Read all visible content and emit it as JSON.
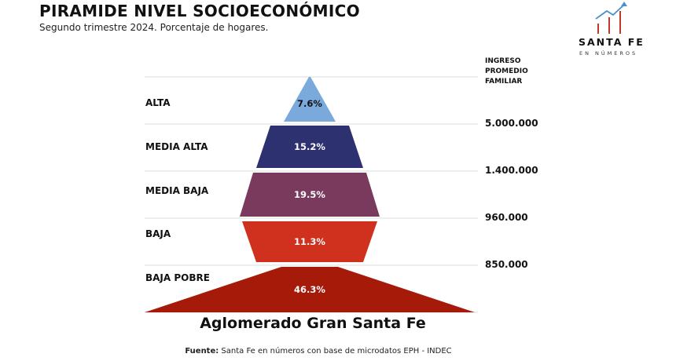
{
  "header": {
    "title": "PIRAMIDE NIVEL SOCIOECONÓMICO",
    "subtitle": "Segundo trimestre 2024. Porcentaje de hogares."
  },
  "logo": {
    "name": "SANTA FE",
    "tagline": "EN NÚMEROS",
    "icon": "rising-bars-arrow-icon",
    "colors": {
      "bars": "#c0392b",
      "arrow": "#4a90c8"
    }
  },
  "income_axis": {
    "header_lines": [
      "INGRESO",
      "PROMEDIO",
      "FAMILIAR"
    ],
    "thresholds": [
      "5.000.000",
      "1.400.000",
      "960.000",
      "850.000"
    ]
  },
  "chart_data": {
    "type": "bar",
    "title": "PIRAMIDE NIVEL SOCIOECONÓMICO",
    "subtitle": "Segundo trimestre 2024. Porcentaje de hogares.",
    "xlabel": "Aglomerado Gran Santa Fe",
    "categories": [
      "ALTA",
      "MEDIA ALTA",
      "MEDIA BAJA",
      "BAJA",
      "BAJA POBRE"
    ],
    "values": [
      7.6,
      15.2,
      19.5,
      11.3,
      46.3
    ],
    "value_labels": [
      "7.6%",
      "15.2%",
      "19.5%",
      "11.3%",
      "46.3%"
    ],
    "colors": [
      "#7aa9dc",
      "#2e3170",
      "#7a3a5e",
      "#d0301e",
      "#a61a0a"
    ],
    "label_colors": [
      "#111111",
      "#ffffff",
      "#ffffff",
      "#ffffff",
      "#ffffff"
    ],
    "shape": "pyramid"
  },
  "footer": {
    "source_label": "Fuente:",
    "source_text": " Santa Fe en números con base de microdatos EPH - INDEC"
  }
}
